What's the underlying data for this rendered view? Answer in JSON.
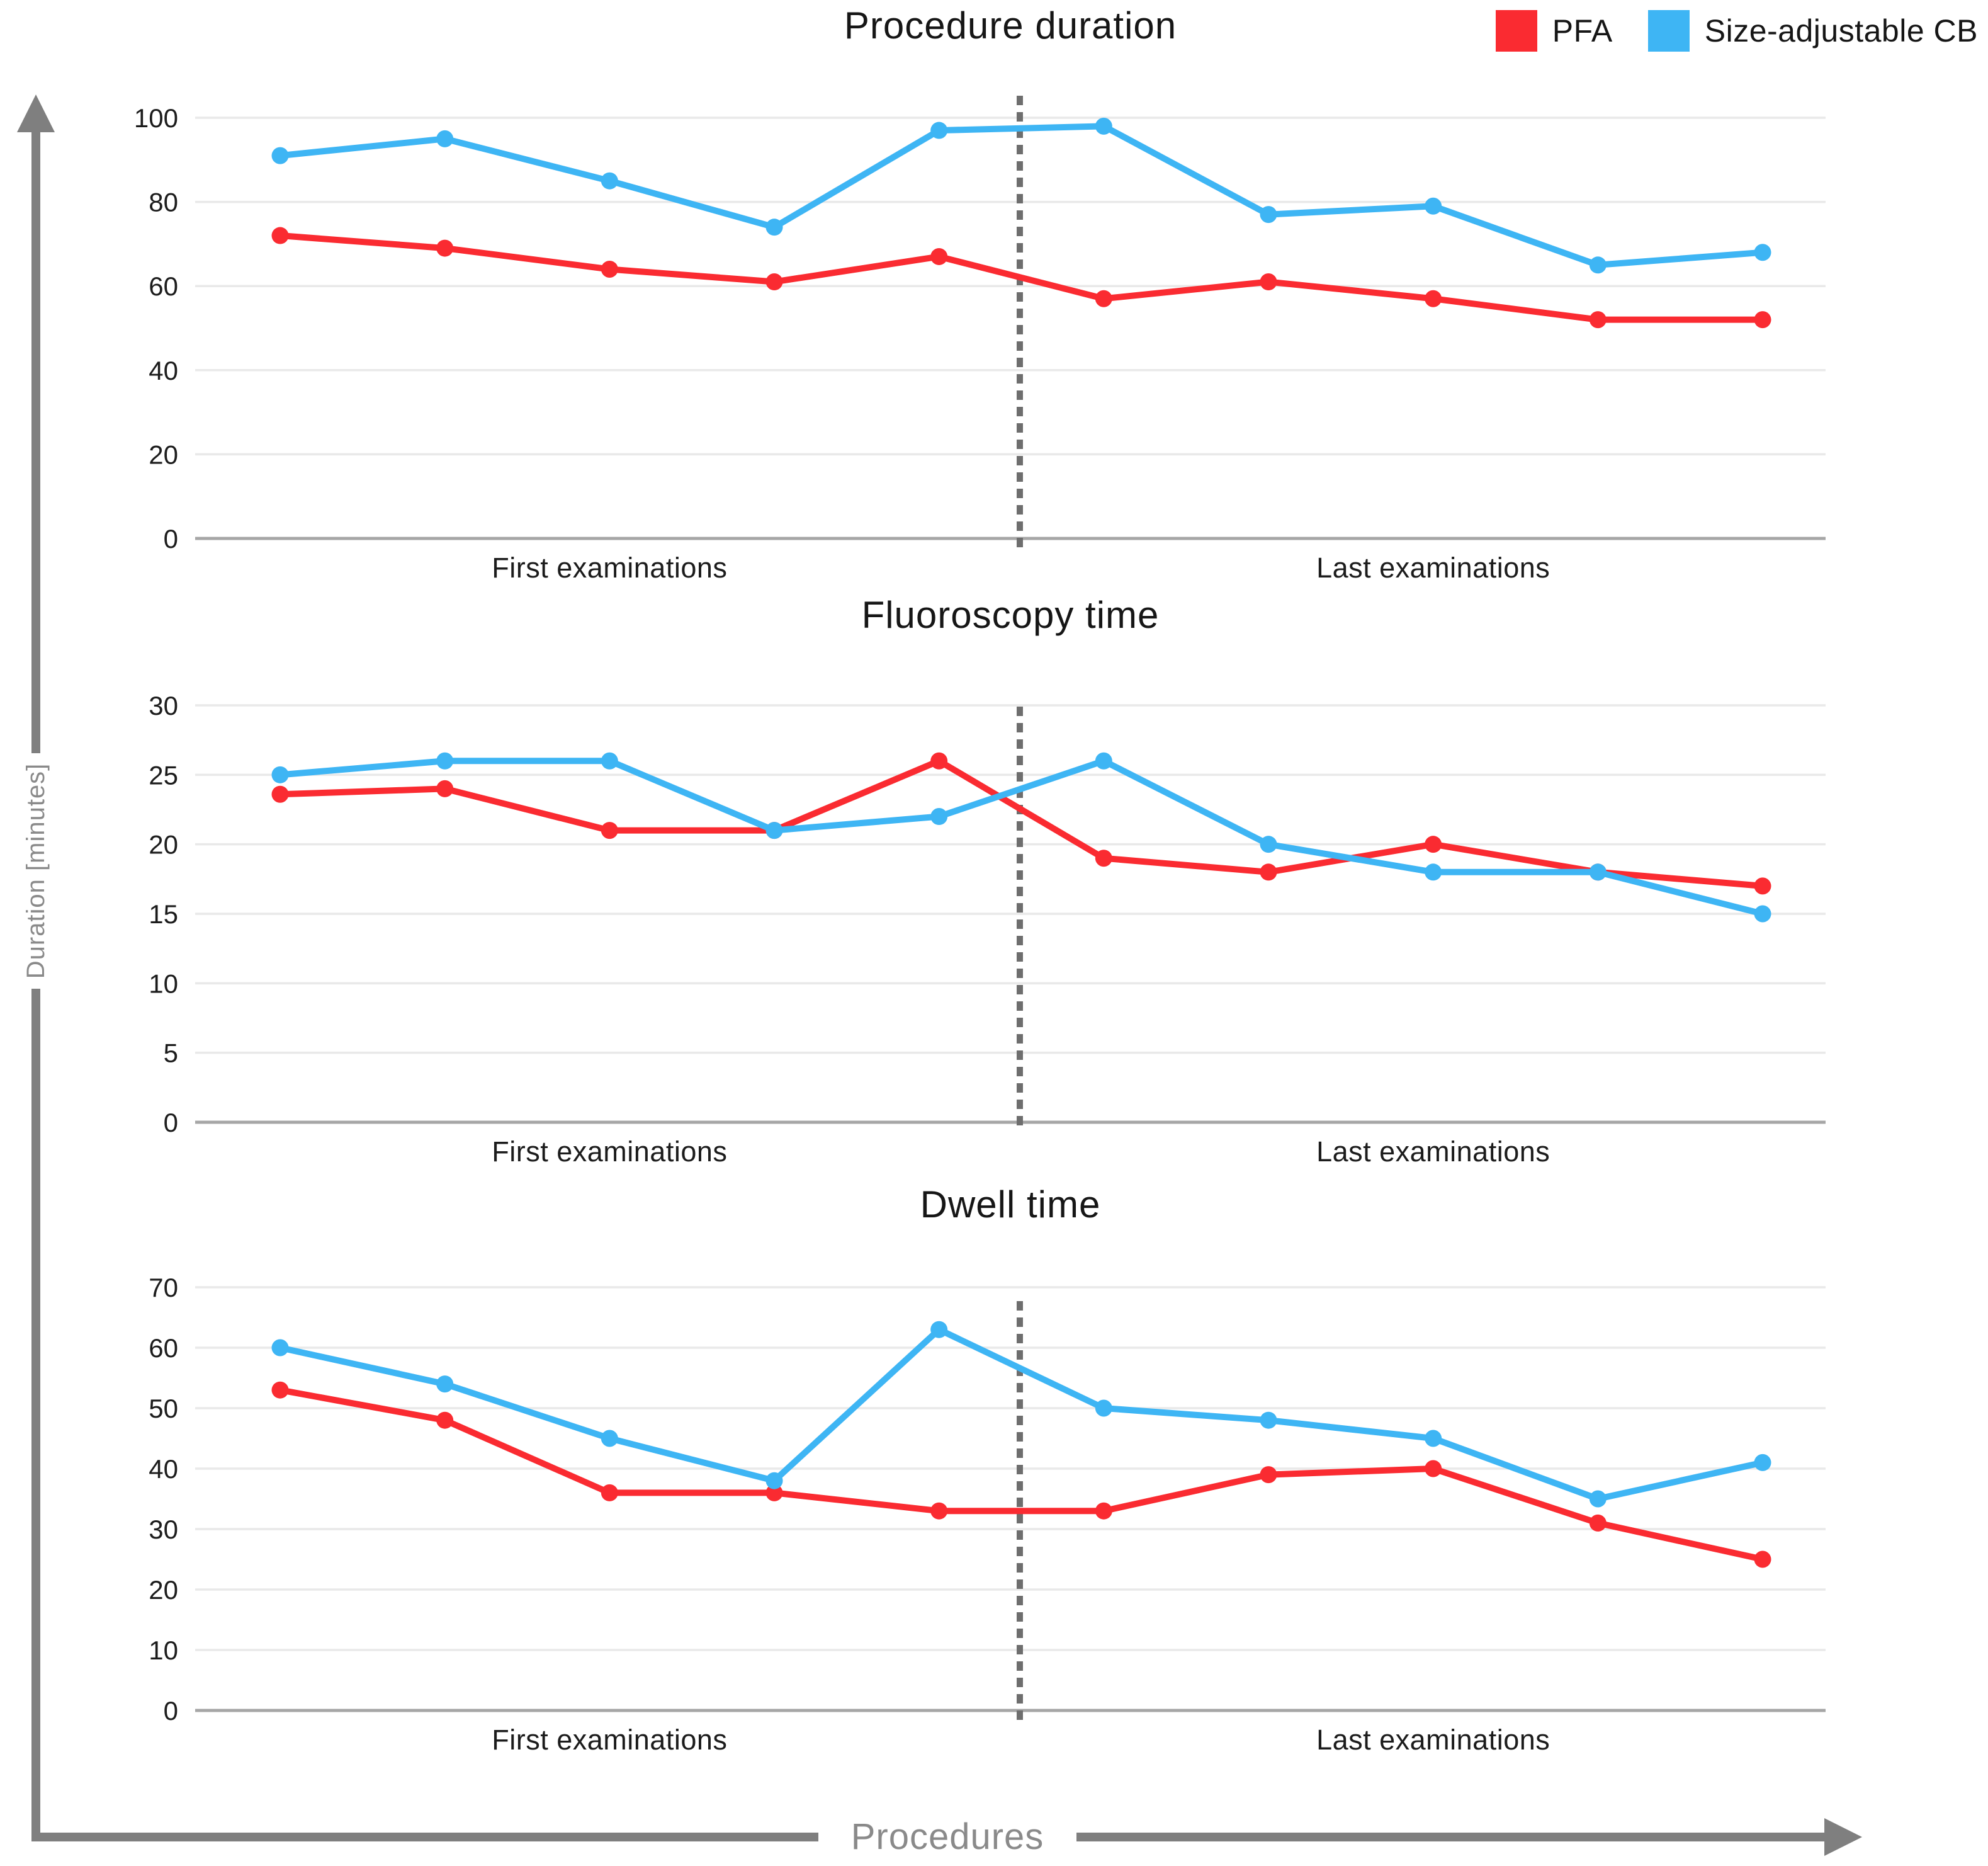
{
  "legend": {
    "items": [
      {
        "label": "PFA",
        "color": "#FA2B31"
      },
      {
        "label": "Size-adjustable CB",
        "color": "#3EB5F4"
      }
    ]
  },
  "axis_labels": {
    "y": "Duration [minutes]",
    "x": "Procedures"
  },
  "colors": {
    "pfa": "#FA2B31",
    "cb": "#3EB5F4",
    "grid": "#E9E9E9",
    "zero_line": "#A6A6A6",
    "divider": "#6E6E6E",
    "axis_arrow": "#7F7F7F",
    "tick_text": "#1C1C1C",
    "axis_text": "#8A8A8A"
  },
  "chart_data": [
    {
      "type": "line",
      "title": "Procedure duration",
      "x": [
        1,
        2,
        3,
        4,
        5,
        6,
        7,
        8,
        9,
        10
      ],
      "x_group_labels": [
        "First examinations",
        "Last examinations"
      ],
      "series": [
        {
          "name": "PFA",
          "color": "#FA2B31",
          "values": [
            72,
            69,
            64,
            61,
            67,
            57,
            61,
            57,
            52,
            52
          ]
        },
        {
          "name": "Size-adjustable CB",
          "color": "#3EB5F4",
          "values": [
            91,
            95,
            85,
            74,
            97,
            98,
            77,
            79,
            65,
            68
          ]
        }
      ],
      "ylim": [
        0,
        100
      ],
      "ytick_step": 20,
      "yticks": [
        0,
        20,
        40,
        60,
        80,
        100
      ],
      "grid": true,
      "divider_between_groups": true
    },
    {
      "type": "line",
      "title": "Fluoroscopy time",
      "x": [
        1,
        2,
        3,
        4,
        5,
        6,
        7,
        8,
        9,
        10
      ],
      "x_group_labels": [
        "First examinations",
        "Last examinations"
      ],
      "series": [
        {
          "name": "PFA",
          "color": "#FA2B31",
          "values": [
            23.6,
            24,
            21,
            21,
            26,
            19,
            18,
            20,
            18,
            17
          ]
        },
        {
          "name": "Size-adjustable CB",
          "color": "#3EB5F4",
          "values": [
            25,
            26,
            26,
            21,
            22,
            26,
            20,
            18,
            18,
            15
          ]
        }
      ],
      "ylim": [
        0,
        30
      ],
      "ytick_step": 5,
      "yticks": [
        0,
        5,
        10,
        15,
        20,
        25,
        30
      ],
      "grid": true,
      "divider_between_groups": true
    },
    {
      "type": "line",
      "title": "Dwell time",
      "x": [
        1,
        2,
        3,
        4,
        5,
        6,
        7,
        8,
        9,
        10
      ],
      "x_group_labels": [
        "First examinations",
        "Last examinations"
      ],
      "series": [
        {
          "name": "PFA",
          "color": "#FA2B31",
          "values": [
            53,
            48,
            36,
            36,
            33,
            33,
            39,
            40,
            31,
            25
          ]
        },
        {
          "name": "Size-adjustable CB",
          "color": "#3EB5F4",
          "values": [
            60,
            54,
            45,
            38,
            63,
            50,
            48,
            45,
            35,
            41
          ]
        }
      ],
      "ylim": [
        0,
        70
      ],
      "ytick_step": 10,
      "yticks": [
        0,
        10,
        20,
        30,
        40,
        50,
        60,
        70
      ],
      "grid": true,
      "divider_between_groups": true
    }
  ]
}
